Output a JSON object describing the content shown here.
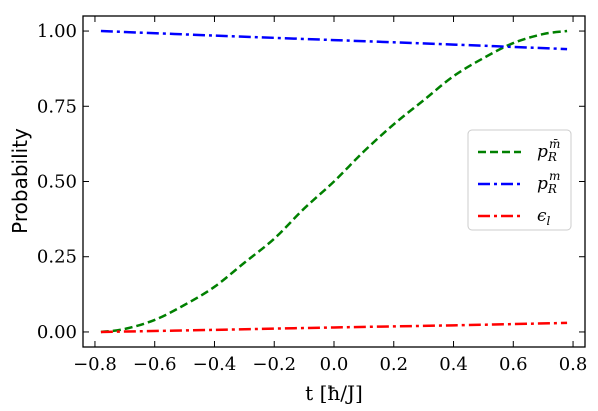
{
  "chart_data": {
    "type": "line",
    "xlabel": "t [ħ/J]",
    "ylabel": "Probability",
    "xlim": [
      -0.84,
      0.84
    ],
    "ylim": [
      -0.05,
      1.05
    ],
    "xticks": [
      -0.8,
      -0.6,
      -0.4,
      -0.2,
      0.0,
      0.2,
      0.4,
      0.6,
      0.8
    ],
    "xtick_labels": [
      "−0.8",
      "−0.6",
      "−0.4",
      "−0.2",
      "0.0",
      "0.2",
      "0.4",
      "0.6",
      "0.8"
    ],
    "yticks": [
      0.0,
      0.25,
      0.5,
      0.75,
      1.0
    ],
    "ytick_labels": [
      "0.00",
      "0.25",
      "0.50",
      "0.75",
      "1.00"
    ],
    "grid": false,
    "legend_position": "center-right",
    "series": [
      {
        "name": "p_R^{m̄}",
        "legend_main": "p",
        "legend_sub": "R",
        "legend_sup": "m̄",
        "color": "#008000",
        "dash": "dashed",
        "x": [
          -0.78,
          -0.7,
          -0.6,
          -0.5,
          -0.4,
          -0.3,
          -0.2,
          -0.1,
          0.0,
          0.1,
          0.2,
          0.3,
          0.4,
          0.5,
          0.6,
          0.7,
          0.78
        ],
        "y": [
          0.0,
          0.01,
          0.04,
          0.09,
          0.15,
          0.23,
          0.31,
          0.41,
          0.5,
          0.6,
          0.69,
          0.77,
          0.85,
          0.91,
          0.96,
          0.99,
          1.0
        ]
      },
      {
        "name": "p_R^{m}",
        "legend_main": "p",
        "legend_sub": "R",
        "legend_sup": "m",
        "color": "#0000ff",
        "dash": "dashdot",
        "x": [
          -0.78,
          -0.4,
          0.0,
          0.4,
          0.78
        ],
        "y": [
          1.0,
          0.985,
          0.97,
          0.955,
          0.94
        ]
      },
      {
        "name": "ε_l",
        "legend_main": "ϵ",
        "legend_sub": "l",
        "legend_sup": "",
        "color": "#ff0000",
        "dash": "dashdot",
        "x": [
          -0.78,
          -0.4,
          0.0,
          0.4,
          0.78
        ],
        "y": [
          0.0,
          0.007,
          0.015,
          0.022,
          0.03
        ]
      }
    ]
  }
}
